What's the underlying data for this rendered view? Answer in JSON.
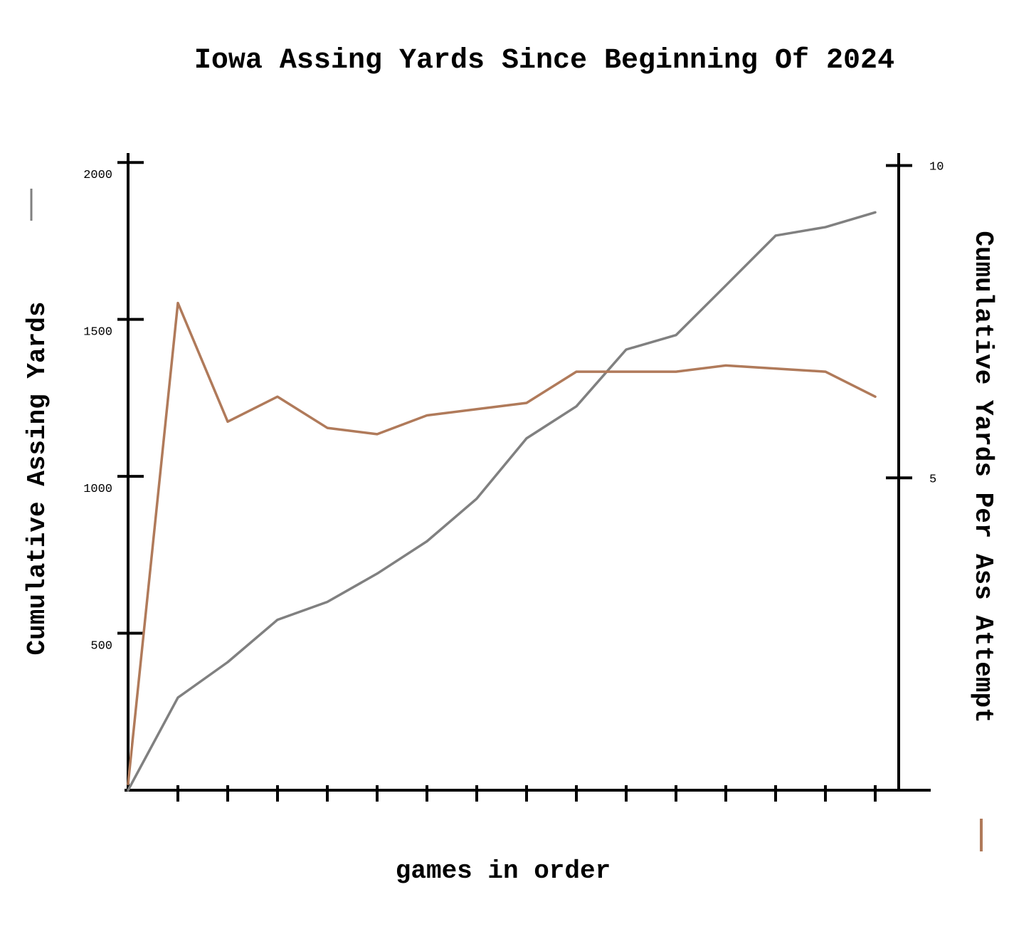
{
  "chart_data": {
    "type": "line",
    "title": "Iowa Assing Yards Since Beginning Of 2024",
    "x_label": "games in order",
    "y_label": "Cumulative Assing Yards",
    "y2_label": "Cumulative Yards Per Ass Attempt",
    "categories": [
      null,
      null,
      null,
      null,
      null,
      null,
      null,
      null,
      null,
      null,
      null,
      null,
      null,
      null,
      null,
      null
    ],
    "series": [
      {
        "color": "#808080",
        "axis": "y",
        "values": [
          0,
          295,
          408,
          543,
          600,
          690,
          793,
          929,
          1121,
          1223,
          1404,
          1450,
          1608,
          1767,
          1794,
          1841
        ]
      },
      {
        "color": "#b07a5a",
        "axis": "y2",
        "values": [
          0.1,
          7.8,
          5.9,
          6.3,
          5.8,
          5.7,
          6.0,
          6.1,
          6.2,
          6.7,
          6.7,
          6.7,
          6.8,
          6.75,
          6.7,
          6.3
        ]
      }
    ],
    "ylim": [
      0,
      2030
    ],
    "yticks": [
      500,
      1000,
      1500,
      2000
    ],
    "y2lim": [
      0,
      10.2
    ],
    "y2ticks": [
      5,
      10
    ]
  }
}
